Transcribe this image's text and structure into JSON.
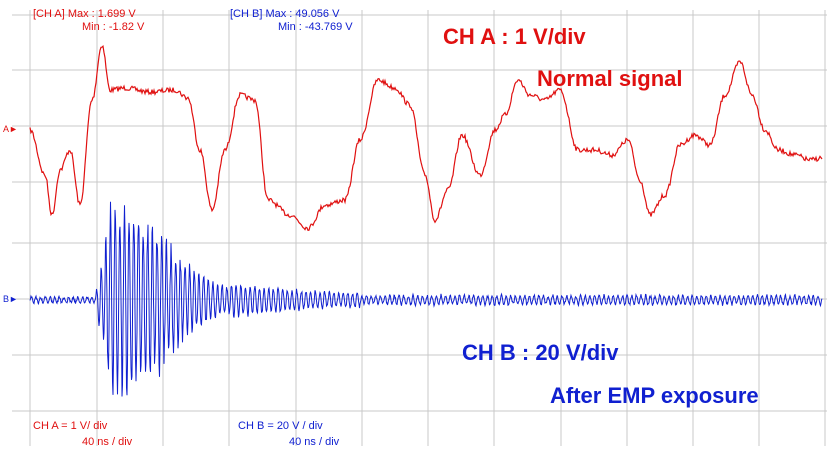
{
  "chart_data": {
    "type": "line",
    "grid": true,
    "time_base": "40 ns / div",
    "channels": [
      {
        "name": "CH A",
        "color": "#e01010",
        "max_label": "[CH A] Max : 1.699 V",
        "min_label": "Min : -1.82 V",
        "scale_label": "CH A = 1 V/ div",
        "timebase_label": "40 ns / div",
        "marker": "A",
        "annotation_scale": "CH  A : 1  V/div",
        "annotation_desc": "Normal signal",
        "max_v": 1.699,
        "min_v": -1.82,
        "volts_per_div": 1
      },
      {
        "name": "CH B",
        "color": "#1020d0",
        "max_label": "[CH B] Max : 49.056 V",
        "min_label": "Min : -43.769 V",
        "scale_label": "CH B = 20 V / div",
        "timebase_label": "40 ns / div",
        "marker": "B",
        "annotation_scale": "CH  B : 20  V/div",
        "annotation_desc": "After  EMP  exposure",
        "max_v": 49.056,
        "min_v": -43.769,
        "volts_per_div": 20
      }
    ]
  }
}
